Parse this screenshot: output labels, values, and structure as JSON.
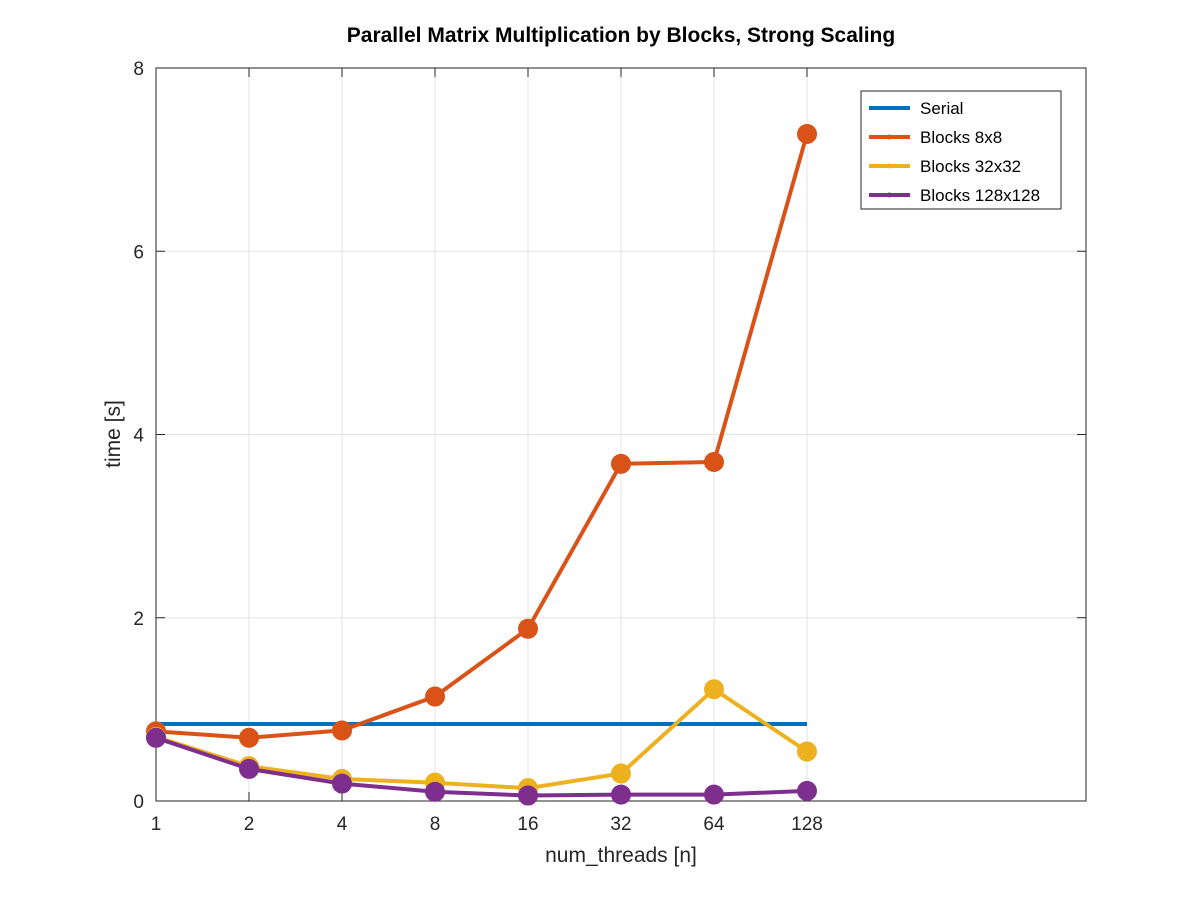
{
  "chart_data": {
    "type": "line",
    "title": "Parallel Matrix Multiplication by Blocks, Strong Scaling",
    "xlabel": "num_threads [n]",
    "ylabel": "time [s]",
    "x_scale": "log2",
    "x": [
      1,
      2,
      4,
      8,
      16,
      32,
      64,
      128
    ],
    "x_tick_labels": [
      "1",
      "2",
      "4",
      "8",
      "16",
      "32",
      "64",
      "128"
    ],
    "xlim": [
      1,
      1024
    ],
    "ylim": [
      0,
      8
    ],
    "y_ticks": [
      0,
      2,
      4,
      6,
      8
    ],
    "y_tick_labels": [
      "0",
      "2",
      "4",
      "6",
      "8"
    ],
    "grid": true,
    "legend_position": "top-right",
    "series": [
      {
        "name": "Serial",
        "color": "#0072BD",
        "marker": "none",
        "values": [
          0.84,
          0.84,
          0.84,
          0.84,
          0.84,
          0.84,
          0.84,
          0.84
        ]
      },
      {
        "name": "Blocks 8x8",
        "color": "#D95319",
        "marker": "circle",
        "values": [
          0.76,
          0.69,
          0.77,
          1.14,
          1.88,
          3.68,
          3.7,
          7.28
        ]
      },
      {
        "name": "Blocks 32x32",
        "color": "#EDB120",
        "marker": "circle",
        "values": [
          0.7,
          0.38,
          0.24,
          0.2,
          0.14,
          0.3,
          1.22,
          0.54
        ]
      },
      {
        "name": "Blocks 128x128",
        "color": "#7E2F8E",
        "marker": "circle",
        "values": [
          0.69,
          0.35,
          0.19,
          0.1,
          0.06,
          0.07,
          0.07,
          0.11
        ]
      }
    ]
  }
}
